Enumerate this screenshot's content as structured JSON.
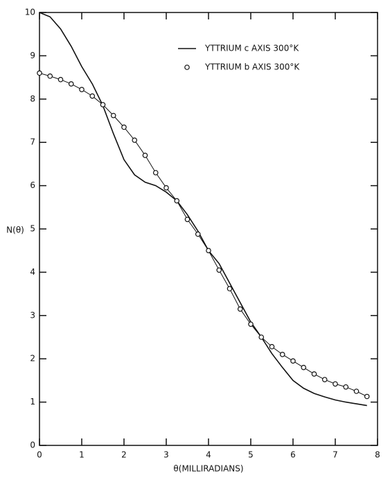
{
  "chart_data": {
    "type": "line",
    "xlabel": "θ(MILLIRADIANS)",
    "ylabel": "N(θ)",
    "xlim": [
      0,
      8
    ],
    "ylim": [
      0,
      10
    ],
    "xticks": [
      0,
      1,
      2,
      3,
      4,
      5,
      6,
      7,
      8
    ],
    "yticks": [
      0,
      1,
      2,
      3,
      4,
      5,
      6,
      7,
      8,
      9,
      10
    ],
    "series": [
      {
        "name": "YTTRIUM c AXIS 300°K",
        "color": "#111111",
        "style": "line",
        "x": [
          0,
          0.25,
          0.5,
          0.75,
          1,
          1.25,
          1.5,
          1.75,
          2,
          2.25,
          2.5,
          2.75,
          3,
          3.25,
          3.5,
          3.75,
          4,
          4.25,
          4.5,
          4.75,
          5,
          5.25,
          5.5,
          5.75,
          6,
          6.25,
          6.5,
          6.75,
          7,
          7.25,
          7.5,
          7.75
        ],
        "values": [
          10,
          9.9,
          9.62,
          9.22,
          8.75,
          8.35,
          7.85,
          7.2,
          6.6,
          6.25,
          6.08,
          6.0,
          5.85,
          5.65,
          5.33,
          4.95,
          4.5,
          4.2,
          3.75,
          3.3,
          2.85,
          2.5,
          2.12,
          1.8,
          1.5,
          1.32,
          1.2,
          1.12,
          1.05,
          1.0,
          0.96,
          0.92
        ]
      },
      {
        "name": "YTTRIUM b AXIS 300°K",
        "color": "#111111",
        "style": "markers",
        "x": [
          0,
          0.25,
          0.5,
          0.75,
          1,
          1.25,
          1.5,
          1.75,
          2,
          2.25,
          2.5,
          2.75,
          3,
          3.25,
          3.5,
          3.75,
          4,
          4.25,
          4.5,
          4.75,
          5,
          5.25,
          5.5,
          5.75,
          6,
          6.25,
          6.5,
          6.75,
          7,
          7.25,
          7.5,
          7.75
        ],
        "values": [
          8.6,
          8.53,
          8.45,
          8.35,
          8.22,
          8.07,
          7.87,
          7.62,
          7.35,
          7.05,
          6.7,
          6.3,
          5.95,
          5.65,
          5.22,
          4.88,
          4.5,
          4.05,
          3.62,
          3.15,
          2.8,
          2.5,
          2.28,
          2.1,
          1.95,
          1.8,
          1.65,
          1.52,
          1.42,
          1.35,
          1.25,
          1.13
        ]
      }
    ]
  }
}
